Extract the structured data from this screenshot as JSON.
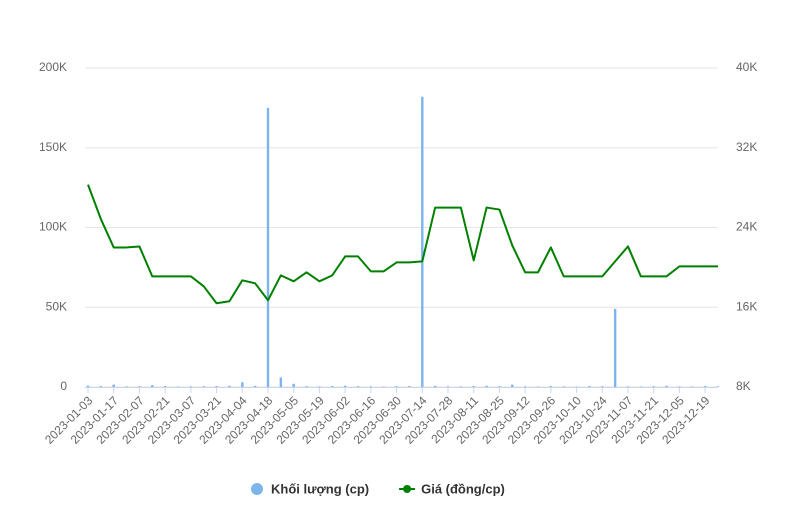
{
  "chart_data": {
    "type": "bar",
    "categories": [
      "2023-01-03",
      null,
      "2023-01-17",
      null,
      "2023-02-07",
      null,
      "2023-02-21",
      null,
      "2023-03-07",
      null,
      "2023-03-21",
      null,
      "2023-04-04",
      null,
      "2023-04-18",
      null,
      "2023-05-05",
      null,
      "2023-05-19",
      null,
      "2023-06-02",
      null,
      "2023-06-16",
      null,
      "2023-06-30",
      null,
      "2023-07-14",
      null,
      "2023-07-28",
      null,
      "2023-08-11",
      null,
      "2023-08-25",
      null,
      "2023-09-12",
      null,
      "2023-09-26",
      null,
      "2023-10-10",
      null,
      "2023-10-24",
      null,
      "2023-11-07",
      null,
      "2023-11-21",
      null,
      "2023-12-05",
      null,
      "2023-12-19",
      null
    ],
    "series": [
      {
        "name": "Khối lượng (cp)",
        "color": "#7cb5ec",
        "type": "bar",
        "values": [
          800,
          600,
          1500,
          400,
          500,
          1200,
          600,
          300,
          400,
          500,
          600,
          800,
          3000,
          700,
          175000,
          6000,
          2000,
          500,
          400,
          600,
          800,
          500,
          400,
          300,
          500,
          600,
          182000,
          700,
          500,
          400,
          600,
          800,
          500,
          1500,
          400,
          300,
          500,
          400,
          300,
          600,
          500,
          49000,
          400,
          300,
          500,
          800,
          400,
          300,
          500,
          400
        ]
      },
      {
        "name": "Giá (đồng/cp)",
        "color": "#008000",
        "type": "line",
        "axis": "y2",
        "values": [
          28300,
          24850,
          22000,
          22000,
          22100,
          19100,
          19100,
          19100,
          19100,
          18100,
          16400,
          16600,
          18700,
          18400,
          16700,
          19200,
          18600,
          19500,
          18600,
          19200,
          21100,
          21100,
          19600,
          19600,
          20500,
          20500,
          20600,
          26000,
          26000,
          26000,
          20700,
          26000,
          25800,
          22200,
          19500,
          19500,
          22000,
          19100,
          19100,
          19100,
          19100,
          20600,
          22100,
          19100,
          19100,
          19100,
          20100,
          20100,
          20100,
          20100
        ]
      }
    ],
    "ylim": [
      0,
      200000
    ],
    "yticks": [
      {
        "value": 0,
        "label": "0"
      },
      {
        "value": 50000,
        "label": "50K"
      },
      {
        "value": 100000,
        "label": "100K"
      },
      {
        "value": 150000,
        "label": "150K"
      },
      {
        "value": 200000,
        "label": "200K"
      }
    ],
    "y2lim": [
      8000,
      40000
    ],
    "y2ticks": [
      {
        "value": 8000,
        "label": "8K"
      },
      {
        "value": 16000,
        "label": "16K"
      },
      {
        "value": 24000,
        "label": "24K"
      },
      {
        "value": 32000,
        "label": "32K"
      },
      {
        "value": 40000,
        "label": "40K"
      }
    ],
    "grid": true,
    "legend": "bottom"
  }
}
